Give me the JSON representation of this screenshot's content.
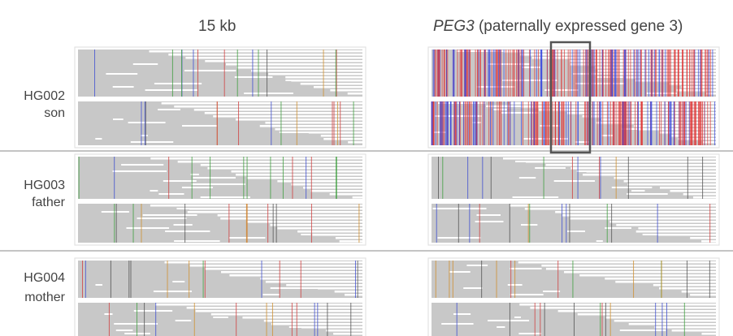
{
  "columns": [
    {
      "label": "15 kb"
    },
    {
      "gene": "PEG3",
      "label": "(paternally expressed gene 3)"
    }
  ],
  "rows": [
    {
      "id": "HG002",
      "role": "son"
    },
    {
      "id": "HG003",
      "role": "father"
    },
    {
      "id": "HG004",
      "role": "mother"
    }
  ]
}
